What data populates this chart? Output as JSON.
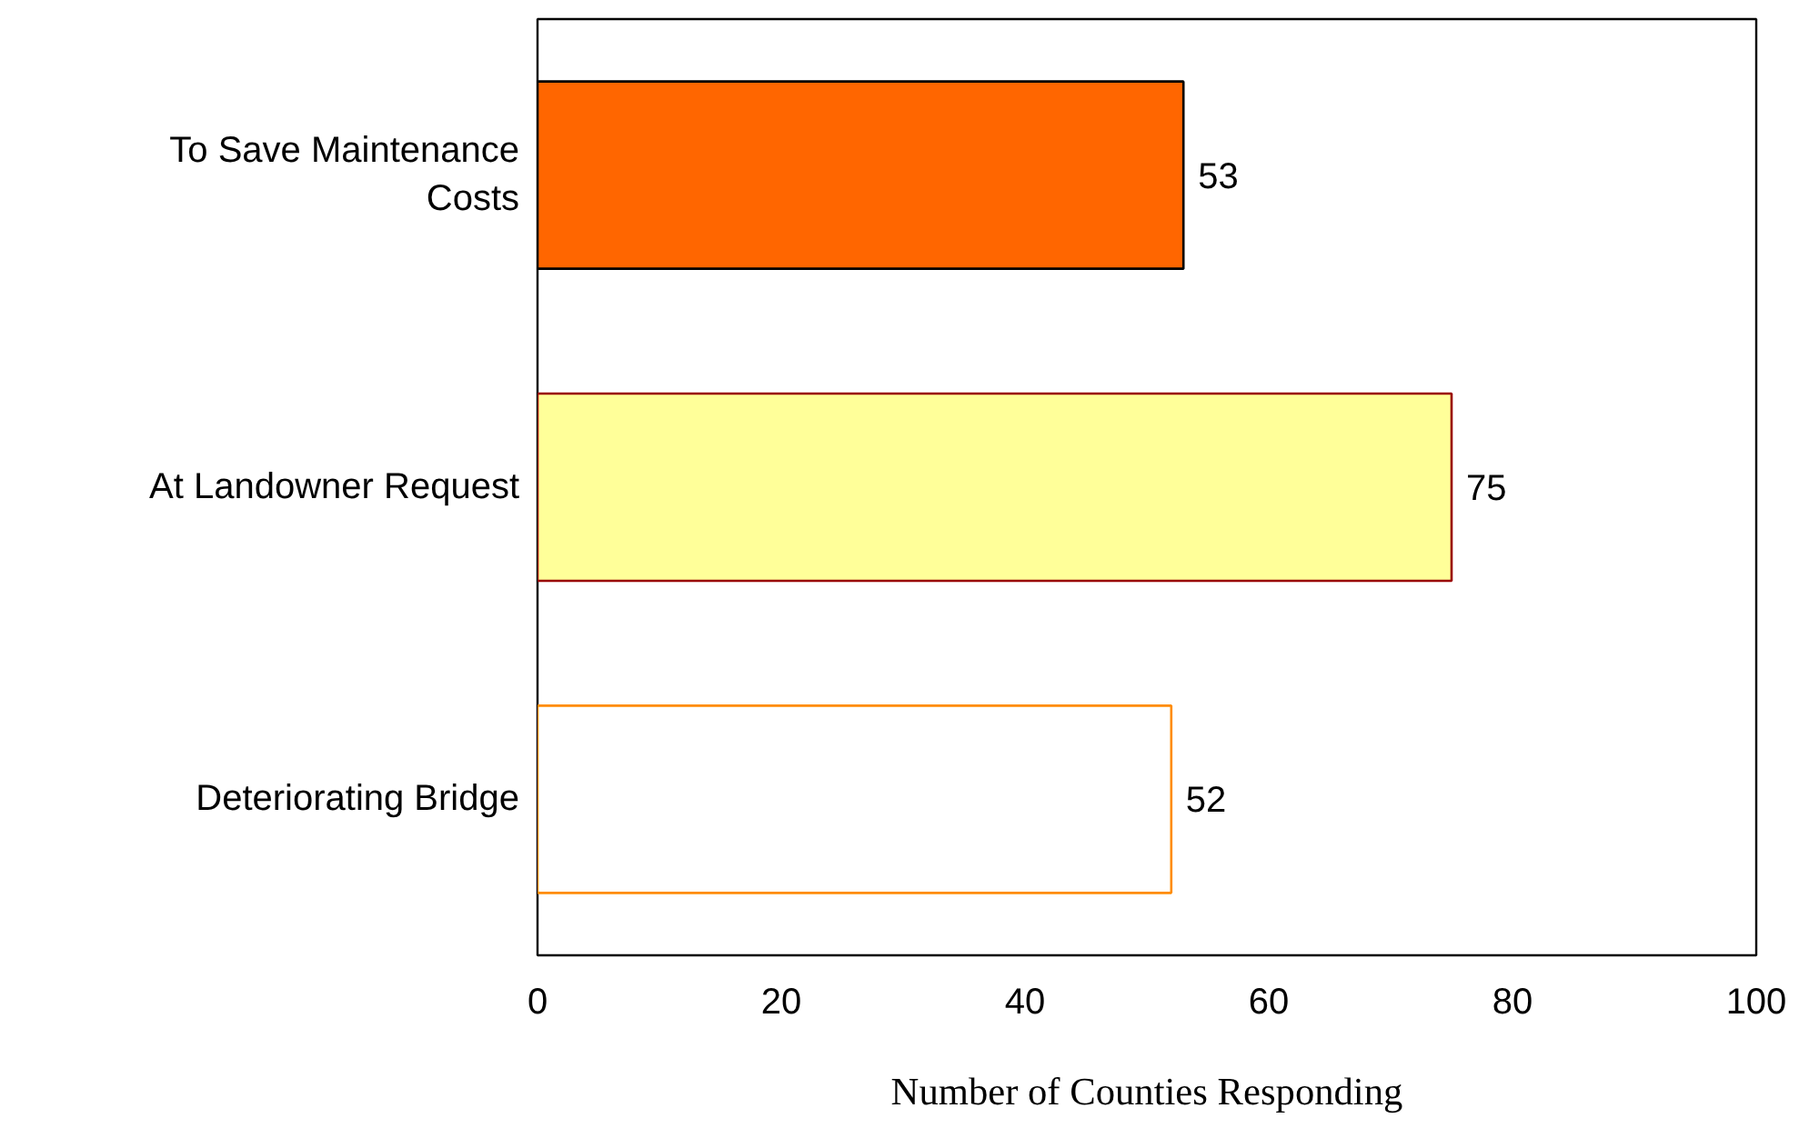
{
  "chart_data": {
    "type": "bar",
    "orientation": "horizontal",
    "xlabel": "Number of Counties Responding",
    "categories": [
      "To Save Maintenance Costs",
      "At Landowner Request",
      "Deteriorating Bridge"
    ],
    "values": [
      53,
      75,
      52
    ],
    "colors": [
      "#ff6600",
      "#ffff99",
      "#ffffff"
    ],
    "xlim": [
      0,
      100
    ],
    "xticks": [
      0,
      20,
      40,
      60,
      80,
      100
    ],
    "data_labels": true,
    "grid": false
  }
}
